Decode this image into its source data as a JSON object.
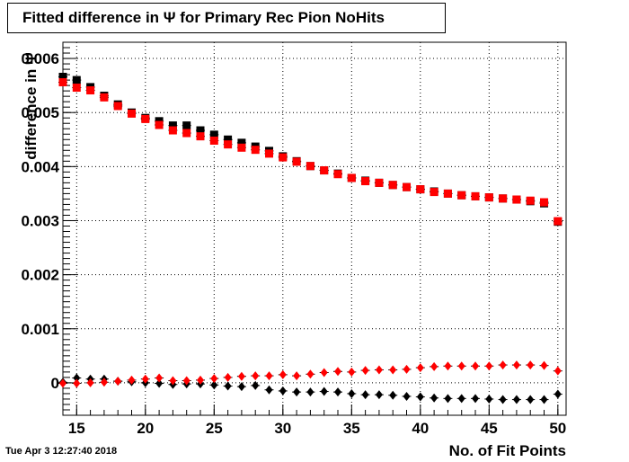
{
  "title": "Fitted difference in  Ψ  for Primary Rec Pion NoHits",
  "timestamp": "Tue Apr  3 12:27:40 2018",
  "chart_data": {
    "type": "scatter",
    "xlabel": "No. of Fit Points",
    "ylabel": "difference in Ψ",
    "xlim": [
      14,
      50.6
    ],
    "ylim": [
      -0.0006,
      0.0063
    ],
    "xticks": [
      "15",
      "20",
      "25",
      "30",
      "35",
      "40",
      "45",
      "50"
    ],
    "yticks": [
      "0",
      "0.001",
      "0.002",
      "0.003",
      "0.004",
      "0.005",
      "0.006"
    ],
    "x": [
      14,
      15,
      16,
      17,
      18,
      19,
      20,
      21,
      22,
      23,
      24,
      25,
      26,
      27,
      28,
      29,
      30,
      31,
      32,
      33,
      34,
      35,
      36,
      37,
      38,
      39,
      40,
      41,
      42,
      43,
      44,
      45,
      46,
      47,
      48,
      49,
      50
    ],
    "series": [
      {
        "marker": "square",
        "color": "#000000",
        "values": [
          0.00566,
          0.0056,
          0.00547,
          0.00531,
          0.00515,
          0.005,
          0.0049,
          0.00484,
          0.00476,
          0.00476,
          0.00467,
          0.00459,
          0.0045,
          0.00444,
          0.00437,
          0.00429,
          0.00419,
          0.0041,
          0.00401,
          0.00393,
          0.00387,
          0.00379,
          0.00374,
          0.0037,
          0.00366,
          0.00362,
          0.00358,
          0.00354,
          0.0035,
          0.00347,
          0.00345,
          0.00343,
          0.00341,
          0.00339,
          0.00336,
          0.00332,
          0.00298
        ]
      },
      {
        "marker": "square",
        "color": "#ff0000",
        "values": [
          0.00556,
          0.00546,
          0.00541,
          0.00528,
          0.00512,
          0.00498,
          0.00488,
          0.00477,
          0.00467,
          0.00462,
          0.00456,
          0.00448,
          0.00441,
          0.00435,
          0.00431,
          0.00424,
          0.00417,
          0.00409,
          0.00401,
          0.00393,
          0.00386,
          0.00379,
          0.00373,
          0.0037,
          0.00366,
          0.00362,
          0.00358,
          0.00353,
          0.0035,
          0.00347,
          0.00345,
          0.00343,
          0.00341,
          0.00339,
          0.00337,
          0.00334,
          0.00299
        ]
      },
      {
        "marker": "diamond",
        "color": "#000000",
        "values": [
          1e-05,
          9e-05,
          7e-05,
          7e-05,
          3e-05,
          2e-05,
          0.0,
          -1e-05,
          -3e-05,
          -2e-05,
          -2e-05,
          -4e-05,
          -6e-05,
          -7e-05,
          -5e-05,
          -0.00013,
          -0.00015,
          -0.00017,
          -0.00017,
          -0.00016,
          -0.00017,
          -0.0002,
          -0.00022,
          -0.00022,
          -0.00023,
          -0.00025,
          -0.00026,
          -0.00028,
          -0.00029,
          -0.00029,
          -0.00029,
          -0.0003,
          -0.00031,
          -0.00031,
          -0.00031,
          -0.00031,
          -0.00021
        ]
      },
      {
        "marker": "diamond",
        "color": "#ff0000",
        "values": [
          -1e-05,
          -1e-05,
          0.0,
          1e-05,
          3e-05,
          5e-05,
          7e-05,
          9e-05,
          4e-05,
          4e-05,
          5e-05,
          8e-05,
          0.0001,
          0.00012,
          0.00013,
          0.00013,
          0.00015,
          0.00013,
          0.00016,
          0.00019,
          0.00021,
          0.0002,
          0.00023,
          0.00024,
          0.00024,
          0.00025,
          0.00028,
          0.0003,
          0.00031,
          0.00031,
          0.00031,
          0.00031,
          0.00033,
          0.00033,
          0.00033,
          0.00032,
          0.00022
        ]
      }
    ]
  }
}
